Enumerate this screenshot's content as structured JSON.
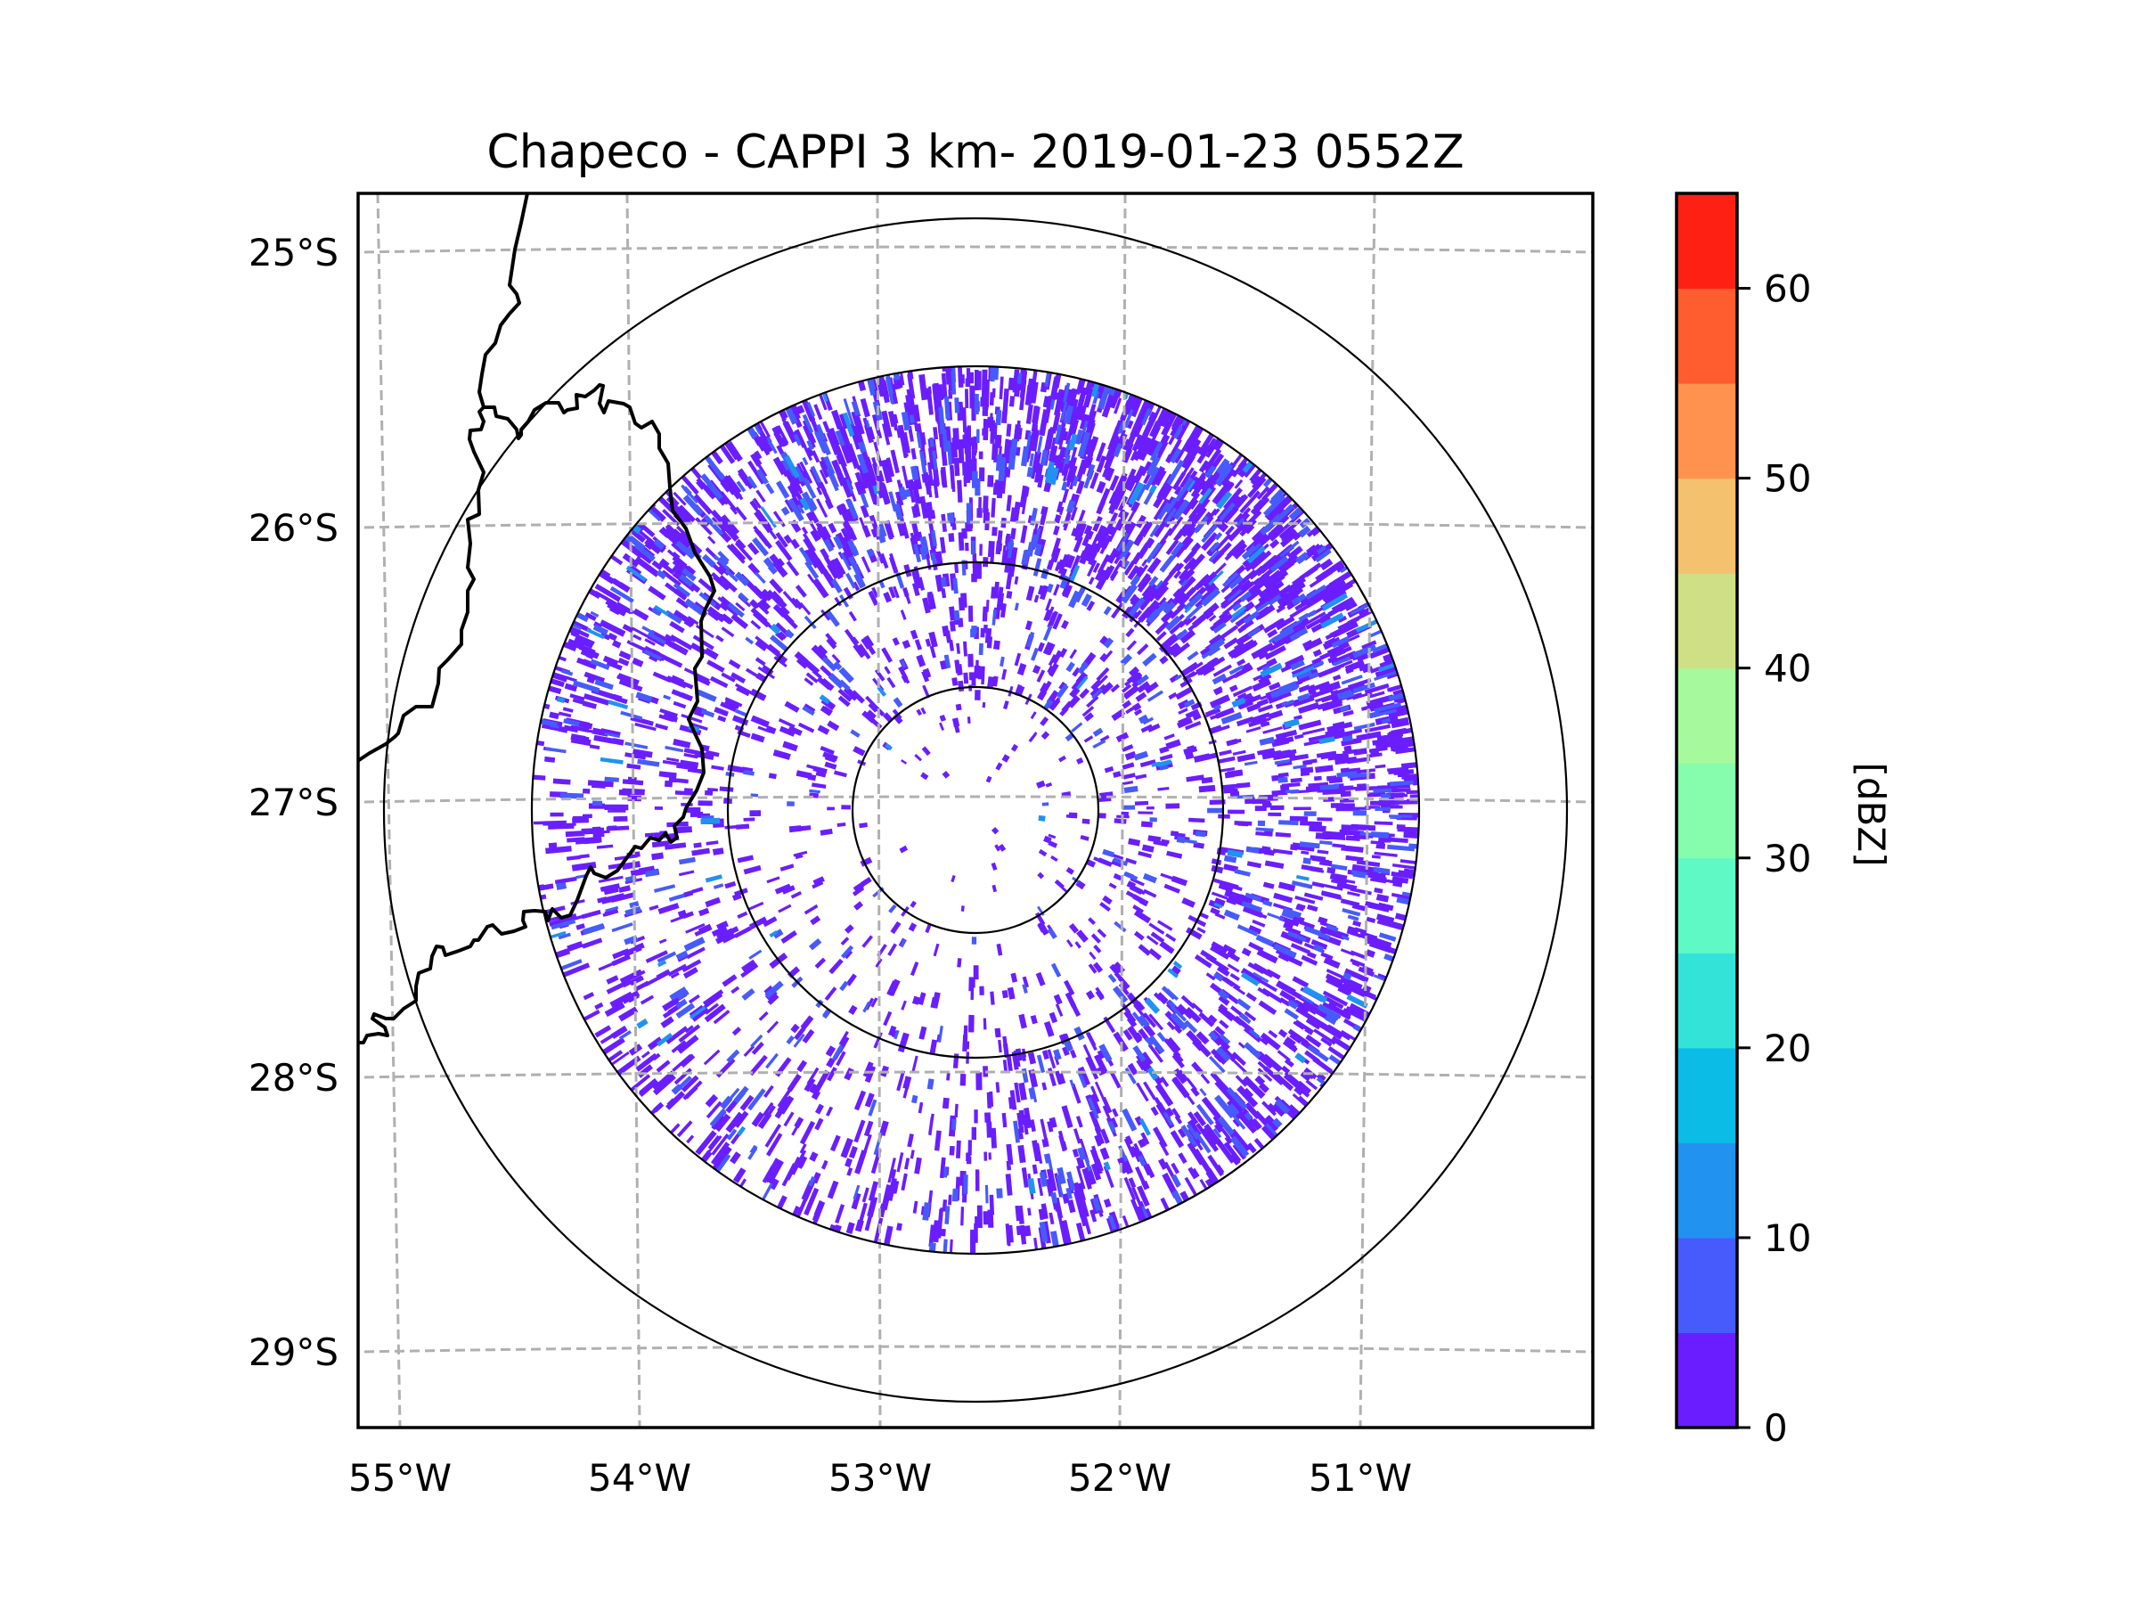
{
  "chart_data": {
    "type": "heatmap",
    "subtype": "radar-ppi-map",
    "title": "Chapeco - CAPPI 3 km- 2019-01-23 0552Z",
    "xlabel": "",
    "ylabel": "",
    "x_ticks": [
      "55°W",
      "54°W",
      "53°W",
      "52°W",
      "51°W"
    ],
    "x_tick_values": [
      -55,
      -54,
      -53,
      -52,
      -51
    ],
    "y_ticks": [
      "25°S",
      "26°S",
      "27°S",
      "28°S",
      "29°S"
    ],
    "y_tick_values": [
      -25,
      -26,
      -27,
      -28,
      -29
    ],
    "xlim": [
      -55.2,
      -50.1
    ],
    "ylim": [
      -29.3,
      -24.8
    ],
    "grid": true,
    "radar_site": {
      "name": "Chapeco",
      "lon": -52.6,
      "lat": -27.03
    },
    "range_rings_km": [
      50,
      100,
      180,
      240
    ],
    "product": "CAPPI 3 km",
    "timestamp": "2019-01-23 0552Z",
    "echo_summary": "Widespread weak echoes (mostly 0-10 dBZ) across the radar coverage; densest to the north and east, sparse within the innermost ring; isolated 10-25 dBZ pixels to the south-east.",
    "colorbar": {
      "label": "[dBZ]",
      "min": 0,
      "max": 65,
      "step": 5,
      "ticks": [
        0,
        10,
        20,
        30,
        40,
        50,
        60
      ],
      "tick_labels": [
        "0",
        "10",
        "20",
        "30",
        "40",
        "50",
        "60"
      ],
      "bins": [
        {
          "from": 0,
          "to": 5,
          "color": "#6a1eff"
        },
        {
          "from": 5,
          "to": 10,
          "color": "#475bfc"
        },
        {
          "from": 10,
          "to": 15,
          "color": "#2192f0"
        },
        {
          "from": 15,
          "to": 20,
          "color": "#0abce6"
        },
        {
          "from": 20,
          "to": 25,
          "color": "#33e3d8"
        },
        {
          "from": 25,
          "to": 30,
          "color": "#5ff9c6"
        },
        {
          "from": 30,
          "to": 35,
          "color": "#86fcad"
        },
        {
          "from": 35,
          "to": 40,
          "color": "#a6f99c"
        },
        {
          "from": 40,
          "to": 45,
          "color": "#cfdf85"
        },
        {
          "from": 45,
          "to": 50,
          "color": "#f4c16e"
        },
        {
          "from": 50,
          "to": 55,
          "color": "#ff924f"
        },
        {
          "from": 55,
          "to": 60,
          "color": "#ff5c30"
        },
        {
          "from": 60,
          "to": 65,
          "color": "#ff2014"
        }
      ]
    }
  }
}
